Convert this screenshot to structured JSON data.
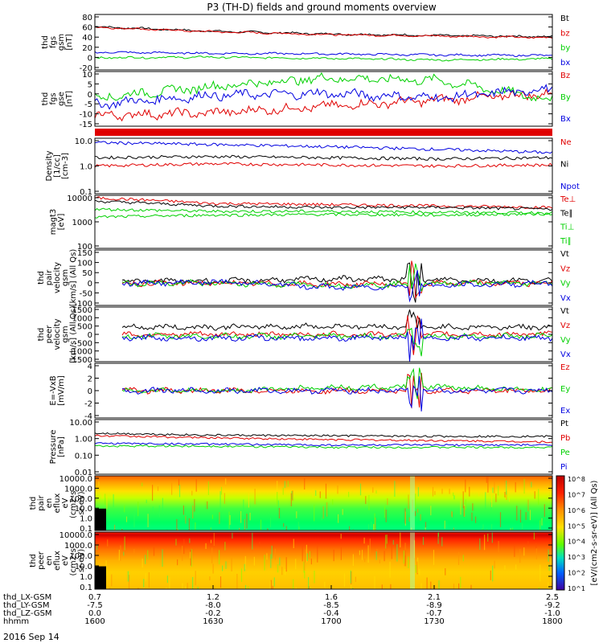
{
  "title": "P3 (TH-D) fields and ground moments overview",
  "colors": {
    "black": "#000000",
    "red": "#e00000",
    "green": "#00d000",
    "blue": "#0000e0"
  },
  "panels": [
    {
      "id": "fgs-gsm",
      "ylabel": [
        "thd",
        "fgs",
        "gsm",
        "[nT]"
      ],
      "yticks": [
        "80",
        "60",
        "40",
        "20",
        "0",
        "-20"
      ],
      "legend": [
        {
          "name": "Bt",
          "color": "black"
        },
        {
          "name": "bz",
          "color": "red"
        },
        {
          "name": "by",
          "color": "green"
        },
        {
          "name": "bx",
          "color": "blue"
        }
      ]
    },
    {
      "id": "fgs-gse",
      "ylabel": [
        "thd",
        "fgs",
        "gse",
        "[nT]"
      ],
      "yticks": [
        "10",
        "5",
        "0",
        "-5",
        "-10",
        "-15"
      ],
      "legend": [
        {
          "name": "Bz",
          "color": "red"
        },
        {
          "name": "By",
          "color": "green"
        },
        {
          "name": "Bx",
          "color": "blue"
        }
      ]
    },
    {
      "id": "density",
      "ylabel": [
        "Density",
        "[1/cc]",
        "[cm-3]"
      ],
      "yticks": [
        "10.0",
        "1.0",
        "0.1"
      ],
      "legend": [
        {
          "name": "Ne",
          "color": "red"
        },
        {
          "name": "Ni",
          "color": "black"
        },
        {
          "name": "Npot",
          "color": "blue"
        }
      ]
    },
    {
      "id": "temperature",
      "ylabel": [
        "magt3",
        "[eV]"
      ],
      "yticks": [
        "10000",
        "1000",
        "100"
      ],
      "legend": [
        {
          "name": "Te⊥",
          "color": "red"
        },
        {
          "name": "Te∥",
          "color": "black"
        },
        {
          "name": "Ti⊥",
          "color": "green"
        },
        {
          "name": "Ti∥",
          "color": "green"
        }
      ]
    },
    {
      "id": "pair-velocity",
      "ylabel": [
        "thd",
        "pair",
        "velocity",
        "gsm",
        "[km/s] (All Qs)"
      ],
      "yticks": [
        "150",
        "100",
        "50",
        "0",
        "-50",
        "-100"
      ],
      "legend": [
        {
          "name": "Vt",
          "color": "black"
        },
        {
          "name": "Vz",
          "color": "red"
        },
        {
          "name": "Vy",
          "color": "green"
        },
        {
          "name": "Vx",
          "color": "blue"
        }
      ]
    },
    {
      "id": "peer-velocity",
      "ylabel": [
        "thd",
        "peer",
        "velocity",
        "gsm",
        "[km/s] (All Qs)"
      ],
      "yticks": [
        "1500",
        "1000",
        "500",
        "0",
        "-500",
        "-1000",
        "-1500"
      ],
      "legend": [
        {
          "name": "Vt",
          "color": "black"
        },
        {
          "name": "Vz",
          "color": "red"
        },
        {
          "name": "Vy",
          "color": "green"
        },
        {
          "name": "Vx",
          "color": "blue"
        }
      ]
    },
    {
      "id": "efield",
      "ylabel": [
        "E=-VxB",
        "[mV/m]"
      ],
      "yticks": [
        "4",
        "2",
        "0",
        "-2",
        "-4"
      ],
      "legend": [
        {
          "name": "Ez",
          "color": "red"
        },
        {
          "name": "Ey",
          "color": "green"
        },
        {
          "name": "Ex",
          "color": "blue"
        }
      ]
    },
    {
      "id": "pressure",
      "ylabel": [
        "Pressure",
        "[nPa]"
      ],
      "yticks": [
        "10.00",
        "1.00",
        "0.10",
        "0.01"
      ],
      "legend": [
        {
          "name": "Pt",
          "color": "black"
        },
        {
          "name": "Pb",
          "color": "red"
        },
        {
          "name": "Pe",
          "color": "green"
        },
        {
          "name": "Pi",
          "color": "blue"
        }
      ]
    },
    {
      "id": "pair-spec",
      "ylabel": [
        "thd",
        "pair",
        "en",
        "eflux",
        "eV",
        "(cm2-s-",
        "sr-eV)"
      ],
      "yticks": [
        "10000.0",
        "1000.0",
        "100.0",
        "10.0",
        "1.0",
        "0.1"
      ]
    },
    {
      "id": "peer-spec",
      "ylabel": [
        "thd",
        "peer",
        "en",
        "eflux",
        "eV",
        "(cm2-s-",
        "sr-eV)"
      ],
      "yticks": [
        "10000.0",
        "1000.0",
        "100.0",
        "10.0",
        "1.0",
        "0.1"
      ]
    }
  ],
  "colorbar": {
    "label": "[eV/(cm2-s-sr-eV)] (All Qs)",
    "ticks": [
      "10^8",
      "10^7",
      "10^6",
      "10^5",
      "10^4",
      "10^3",
      "10^2",
      "10^1"
    ]
  },
  "xaxis": {
    "rows": [
      {
        "label": "thd_LX-GSM",
        "values": [
          "0.7",
          "1.2",
          "1.6",
          "2.1",
          "2.5"
        ]
      },
      {
        "label": "thd_LY-GSM",
        "values": [
          "-7.5",
          "-8.0",
          "-8.5",
          "-8.9",
          "-9.2"
        ]
      },
      {
        "label": "thd_LZ-GSM",
        "values": [
          "0.0",
          "-0.2",
          "-0.4",
          "-0.7",
          "-1.0"
        ]
      },
      {
        "label": "hhmm",
        "values": [
          "1600",
          "1630",
          "1700",
          "1730",
          "1800"
        ]
      }
    ],
    "date": "2016 Sep 14"
  },
  "chart_data": {
    "type": "line",
    "title": "P3 (TH-D) fields and ground moments overview",
    "x": [
      "1600",
      "1630",
      "1700",
      "1730",
      "1800"
    ],
    "xlabel": "hhmm",
    "panels": [
      {
        "id": "fgs-gsm",
        "ylim": [
          -20,
          80
        ],
        "series": [
          {
            "name": "Bt",
            "values": [
              58,
              50,
              45,
              42,
              40
            ]
          },
          {
            "name": "bz",
            "values": [
              57,
              49,
              44,
              41,
              38
            ]
          },
          {
            "name": "by",
            "values": [
              2,
              3,
              1,
              -2,
              0
            ]
          },
          {
            "name": "bx",
            "values": [
              12,
              10,
              9,
              7,
              6
            ]
          }
        ]
      },
      {
        "id": "fgs-gse",
        "ylim": [
          -15,
          10
        ],
        "series": [
          {
            "name": "Bz",
            "values": [
              -10,
              -9,
              -6,
              -3,
              0
            ]
          },
          {
            "name": "By",
            "values": [
              -2,
              3,
              7,
              6,
              -3
            ]
          },
          {
            "name": "Bx",
            "values": [
              -5,
              -1,
              0,
              -2,
              2
            ]
          }
        ]
      },
      {
        "id": "density",
        "scale": "log",
        "ylim": [
          0.1,
          10
        ],
        "series": [
          {
            "name": "Ne",
            "values": [
              1.0,
              1.2,
              1.1,
              1.0,
              1.1
            ]
          },
          {
            "name": "Ni",
            "values": [
              2.0,
              2.2,
              2.0,
              1.8,
              2.0
            ]
          },
          {
            "name": "Npot",
            "values": [
              7,
              6,
              5,
              4,
              3
            ]
          }
        ]
      },
      {
        "id": "temperature",
        "scale": "log",
        "ylim": [
          100,
          10000
        ],
        "series": [
          {
            "name": "Te⊥",
            "values": [
              8000,
              5000,
              4500,
              4000,
              3500
            ]
          },
          {
            "name": "Te∥",
            "values": [
              6000,
              4000,
              3500,
              3500,
              3000
            ]
          },
          {
            "name": "Ti⊥",
            "values": [
              3000,
              2500,
              2500,
              2300,
              2200
            ]
          },
          {
            "name": "Ti∥",
            "values": [
              1500,
              1800,
              1900,
              1800,
              2000
            ]
          }
        ]
      },
      {
        "id": "pair-velocity",
        "ylim": [
          -100,
          150
        ],
        "series": [
          {
            "name": "Vt",
            "values": [
              10,
              10,
              20,
              15,
              10
            ]
          },
          {
            "name": "Vz",
            "values": [
              0,
              0,
              -5,
              0,
              0
            ]
          },
          {
            "name": "Vy",
            "values": [
              0,
              0,
              -10,
              0,
              0
            ]
          },
          {
            "name": "Vx",
            "values": [
              0,
              5,
              -20,
              -10,
              0
            ]
          }
        ]
      },
      {
        "id": "peer-velocity",
        "ylim": [
          -1500,
          1500
        ],
        "series": [
          {
            "name": "Vt",
            "values": [
              400,
              400,
              450,
              400,
              400
            ]
          },
          {
            "name": "Vz",
            "values": [
              0,
              0,
              0,
              0,
              0
            ]
          },
          {
            "name": "Vy",
            "values": [
              -100,
              -100,
              -100,
              -100,
              -100
            ]
          },
          {
            "name": "Vx",
            "values": [
              -200,
              -200,
              -200,
              -200,
              -200
            ]
          }
        ]
      },
      {
        "id": "efield",
        "ylim": [
          -4,
          4
        ],
        "series": [
          {
            "name": "Ez",
            "values": [
              0,
              0,
              0,
              0,
              0
            ]
          },
          {
            "name": "Ey",
            "values": [
              0,
              0,
              0.5,
              0.5,
              0
            ]
          },
          {
            "name": "Ex",
            "values": [
              0,
              0,
              0,
              0,
              0
            ]
          }
        ]
      },
      {
        "id": "pressure",
        "scale": "log",
        "ylim": [
          0.01,
          10
        ],
        "series": [
          {
            "name": "Pt",
            "values": [
              1.8,
              1.4,
              1.3,
              1.2,
              1.2
            ]
          },
          {
            "name": "Pb",
            "values": [
              1.3,
              1.0,
              0.8,
              0.7,
              0.6
            ]
          },
          {
            "name": "Pe",
            "values": [
              0.35,
              0.35,
              0.3,
              0.3,
              0.3
            ]
          },
          {
            "name": "Pi",
            "values": [
              0.5,
              0.45,
              0.4,
              0.4,
              0.4
            ]
          }
        ]
      }
    ]
  }
}
